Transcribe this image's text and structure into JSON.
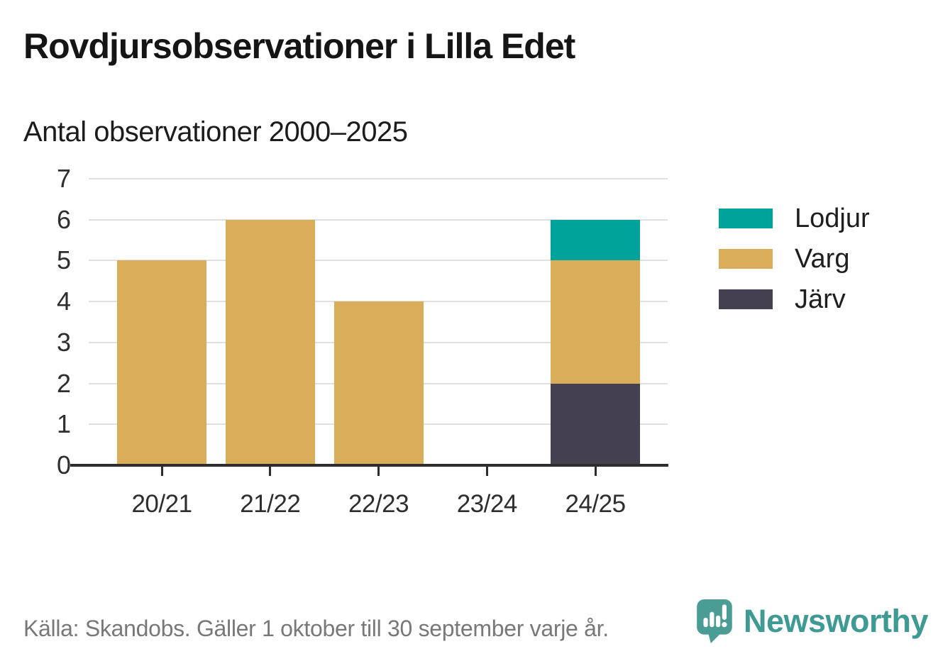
{
  "chart_data": {
    "type": "bar",
    "stacked": true,
    "title": "Rovdjursobservationer i Lilla Edet",
    "subtitle": "Antal observationer 2000–2025",
    "categories": [
      "20/21",
      "21/22",
      "22/23",
      "23/24",
      "24/25"
    ],
    "series": [
      {
        "name": "Lodjur",
        "color": "#00a39a",
        "values": [
          0,
          0,
          0,
          0,
          1
        ]
      },
      {
        "name": "Varg",
        "color": "#d9ad5a",
        "values": [
          5,
          6,
          4,
          0,
          3
        ]
      },
      {
        "name": "Järv",
        "color": "#444050",
        "values": [
          0,
          0,
          0,
          0,
          2
        ]
      }
    ],
    "xlabel": "",
    "ylabel": "",
    "ylim": [
      0,
      7
    ],
    "yticks": [
      0,
      1,
      2,
      3,
      4,
      5,
      6,
      7
    ],
    "grid": "horizontal",
    "legend_position": "right"
  },
  "footer": {
    "source": "Källa: Skandobs. Gäller 1 oktober till 30 september varje år.",
    "brand": "Newsworthy"
  },
  "colors": {
    "grid": "#e0e0e0",
    "axis": "#2d2d2d",
    "tick_text": "#2e2e2e",
    "title_text": "#151515",
    "muted_text": "#787878",
    "brand_teal": "#3e9a93"
  }
}
